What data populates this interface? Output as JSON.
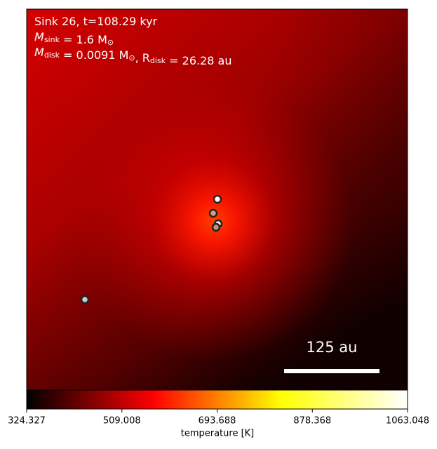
{
  "chart_data": {
    "type": "image",
    "annotations": [
      [
        {
          "text": "Sink 26, t=108.29 kyr"
        }
      ],
      [
        {
          "text": "M"
        },
        {
          "sub": "sink"
        },
        {
          "text": " = 1.6 M"
        },
        {
          "sub": "⊙"
        }
      ],
      [
        {
          "text": "M"
        },
        {
          "sub": "disk"
        },
        {
          "text": " = 0.0091 M"
        },
        {
          "sub": "⊙"
        },
        {
          "text": ", R"
        },
        {
          "sub": "disk"
        },
        {
          "text": " = 26.28 au"
        }
      ]
    ],
    "scale_bar_label": "125 au",
    "colorbar": {
      "label": "temperature [K]",
      "lim": [
        324.327,
        1063.048
      ],
      "ticks": [
        324.327,
        509.008,
        693.688,
        878.368,
        1063.048
      ],
      "colormap": [
        "#000000",
        "#ff0000",
        "#ffff00",
        "#ffffff"
      ]
    }
  }
}
